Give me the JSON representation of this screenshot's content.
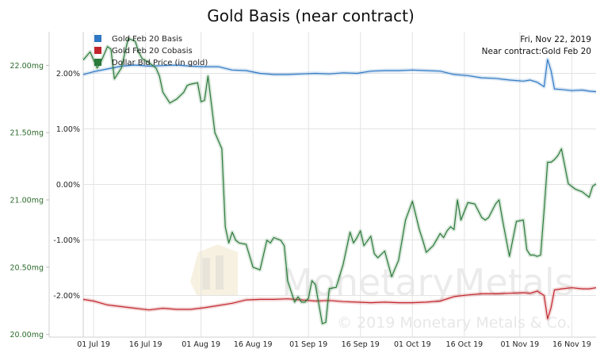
{
  "chart_data": {
    "type": "line",
    "title": "Gold Basis (near contract)",
    "date_label": "Fri, Nov 22, 2019",
    "contract_label": "Near contract:Gold Feb 20",
    "watermark": "MonetaryMetals",
    "copyright": "© 2019 Monetary Metals & Co.",
    "x_ticks": [
      "01 Jul 19",
      "16 Jul 19",
      "01 Aug 19",
      "16 Aug 19",
      "01 Sep 19",
      "16 Sep 19",
      "01 Oct 19",
      "16 Oct 19",
      "01 Nov 19",
      "16 Nov 19"
    ],
    "x_tick_days": [
      0,
      15,
      31,
      46,
      62,
      77,
      92,
      107,
      123,
      138
    ],
    "x_range": [
      -3,
      145
    ],
    "right_axis": {
      "unit": "percent",
      "ylim": [
        -2.75,
        2.75
      ],
      "ticks": [
        "2.00%",
        "1.00%",
        "0.00%",
        "-1.00%",
        "-2.00%"
      ],
      "tick_values": [
        2,
        1,
        0,
        -1,
        -2
      ]
    },
    "left_axis": {
      "unit": "mg",
      "ylim": [
        19.98,
        22.25
      ],
      "ticks": [
        "22.00mg",
        "21.50mg",
        "21.00mg",
        "20.50mg",
        "20.00mg"
      ],
      "tick_values": [
        22.0,
        21.5,
        21.0,
        20.5,
        20.0
      ]
    },
    "series": [
      {
        "name": "Gold Feb 20 Basis",
        "color": "#2f78c4",
        "axis": "right",
        "x": [
          -3,
          0,
          4,
          8,
          12,
          16,
          20,
          24,
          28,
          32,
          36,
          40,
          44,
          48,
          52,
          56,
          60,
          64,
          68,
          72,
          76,
          80,
          84,
          88,
          92,
          96,
          100,
          104,
          108,
          112,
          116,
          120,
          124,
          126,
          128,
          130,
          131,
          132,
          133,
          135,
          138,
          141,
          143,
          145
        ],
        "values": [
          1.98,
          2.03,
          2.08,
          2.13,
          2.15,
          2.13,
          2.14,
          2.15,
          2.13,
          2.12,
          2.12,
          2.06,
          2.05,
          2.0,
          1.98,
          1.98,
          1.99,
          2.0,
          1.99,
          2.01,
          2.0,
          2.04,
          2.05,
          2.05,
          2.06,
          2.05,
          2.04,
          1.98,
          1.96,
          1.92,
          1.91,
          1.88,
          1.86,
          1.88,
          1.84,
          1.76,
          2.25,
          2.05,
          1.72,
          1.71,
          1.69,
          1.7,
          1.68,
          1.67
        ]
      },
      {
        "name": "Gold Feb 20 Cobasis",
        "color": "#c0262c",
        "axis": "right",
        "x": [
          -3,
          0,
          4,
          8,
          12,
          16,
          20,
          24,
          28,
          32,
          36,
          40,
          44,
          48,
          52,
          56,
          60,
          64,
          68,
          72,
          76,
          80,
          84,
          88,
          92,
          96,
          100,
          104,
          108,
          112,
          116,
          120,
          124,
          126,
          128,
          130,
          131,
          132,
          133,
          135,
          138,
          141,
          143,
          145
        ],
        "values": [
          -2.07,
          -2.1,
          -2.17,
          -2.2,
          -2.23,
          -2.26,
          -2.23,
          -2.25,
          -2.25,
          -2.22,
          -2.18,
          -2.14,
          -2.08,
          -2.07,
          -2.07,
          -2.06,
          -2.08,
          -2.1,
          -2.09,
          -2.11,
          -2.12,
          -2.13,
          -2.12,
          -2.13,
          -2.13,
          -2.12,
          -2.1,
          -2.02,
          -1.99,
          -1.97,
          -1.97,
          -1.96,
          -1.95,
          -1.96,
          -1.92,
          -2.0,
          -2.42,
          -2.22,
          -1.9,
          -1.88,
          -1.86,
          -1.88,
          -1.88,
          -1.86
        ]
      },
      {
        "name": "Dollar Bid Price (in gold)",
        "color": "#2a7a3a",
        "axis": "left",
        "x": [
          -3,
          -1,
          1,
          2,
          4,
          5,
          6,
          8,
          10,
          12,
          13,
          14,
          16,
          18,
          19,
          20,
          22,
          24,
          26,
          27,
          28,
          30,
          31,
          32,
          33,
          35,
          36,
          37,
          38,
          39,
          40,
          41,
          42,
          44,
          46,
          48,
          50,
          51,
          52,
          54,
          55,
          56,
          58,
          59,
          60,
          61,
          62,
          63,
          64,
          66,
          67,
          68,
          70,
          72,
          74,
          75,
          76,
          77,
          78,
          80,
          81,
          82,
          84,
          86,
          88,
          90,
          92,
          94,
          95,
          96,
          98,
          100,
          101,
          102,
          103,
          104,
          105,
          106,
          108,
          110,
          112,
          113,
          114,
          116,
          117,
          118,
          120,
          122,
          124,
          125,
          126,
          127,
          128,
          129,
          130,
          131,
          132,
          133,
          134,
          135,
          137,
          139,
          141,
          143,
          144,
          145
        ],
        "values": [
          22.04,
          22.1,
          21.98,
          22.02,
          22.14,
          22.12,
          21.9,
          21.98,
          22.2,
          22.18,
          22.1,
          22.05,
          22.02,
          21.98,
          21.92,
          21.8,
          21.72,
          21.75,
          21.8,
          21.85,
          21.86,
          21.87,
          21.73,
          21.74,
          21.92,
          21.5,
          21.44,
          21.38,
          20.8,
          20.68,
          20.76,
          20.7,
          20.68,
          20.67,
          20.5,
          20.48,
          20.7,
          20.68,
          20.72,
          20.7,
          20.66,
          20.4,
          20.24,
          20.28,
          20.24,
          20.24,
          20.27,
          20.4,
          20.37,
          20.08,
          20.09,
          20.34,
          20.35,
          20.52,
          20.76,
          20.68,
          20.72,
          20.77,
          20.66,
          20.73,
          20.6,
          20.57,
          20.62,
          20.43,
          20.55,
          20.85,
          20.99,
          20.78,
          20.7,
          20.61,
          20.66,
          20.75,
          20.72,
          20.77,
          20.8,
          20.78,
          21.0,
          20.85,
          20.98,
          20.97,
          20.87,
          20.85,
          20.87,
          20.97,
          21.0,
          20.85,
          20.58,
          20.84,
          20.85,
          20.63,
          20.59,
          20.59,
          20.58,
          20.59,
          20.92,
          21.28,
          21.28,
          21.3,
          21.33,
          21.38,
          21.12,
          21.08,
          21.06,
          21.02,
          21.1,
          21.12
        ]
      }
    ]
  }
}
